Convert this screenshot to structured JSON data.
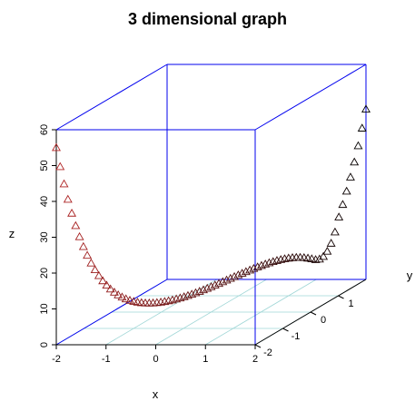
{
  "chart_data": {
    "type": "scatter",
    "title": "3 dimensional graph",
    "xlabel": "x",
    "ylabel": "y",
    "zlabel": "z",
    "xlim": [
      -2,
      2
    ],
    "ylim": [
      -2,
      2
    ],
    "zlim": [
      0,
      60
    ],
    "x_ticks": [
      "-2",
      "-1",
      "0",
      "1",
      "2"
    ],
    "y_ticks": [
      "-2",
      "-1",
      "0",
      "1"
    ],
    "z_ticks": [
      "0",
      "10",
      "20",
      "30",
      "40",
      "50",
      "60"
    ],
    "marker": "open-triangle",
    "color_near": "#b22222",
    "color_far": "#000000",
    "box_color": "#0000ee",
    "grid_color": "#9fd6d6",
    "grid": true,
    "series": [
      {
        "x": [
          -2.0,
          -1.95,
          -1.9,
          -1.85,
          -1.8,
          -1.75,
          -1.7,
          -1.65,
          -1.6,
          -1.55,
          -1.5,
          -1.45,
          -1.4,
          -1.35,
          -1.3,
          -1.25,
          -1.2,
          -1.15,
          -1.1,
          -1.05,
          -1.0,
          -0.95,
          -0.9,
          -0.85,
          -0.8,
          -0.75,
          -0.7,
          -0.65,
          -0.6,
          -0.55,
          -0.5,
          -0.45,
          -0.4,
          -0.35,
          -0.3,
          -0.25,
          -0.2,
          -0.15,
          -0.1,
          -0.05,
          0.0,
          0.05,
          0.1,
          0.15,
          0.2,
          0.25,
          0.3,
          0.35,
          0.4,
          0.45,
          0.5,
          0.55,
          0.6,
          0.65,
          0.7,
          0.75,
          0.8,
          0.85,
          0.9,
          0.95,
          1.0,
          1.05,
          1.1,
          1.15,
          1.2,
          1.25,
          1.3,
          1.35,
          1.4,
          1.45,
          1.5,
          1.55,
          1.6,
          1.65,
          1.7,
          1.75,
          1.8,
          1.85,
          1.9,
          1.95,
          2.0
        ],
        "y": [
          -2.0,
          -1.95,
          -1.9,
          -1.85,
          -1.8,
          -1.75,
          -1.7,
          -1.65,
          -1.6,
          -1.55,
          -1.5,
          -1.45,
          -1.4,
          -1.35,
          -1.3,
          -1.25,
          -1.2,
          -1.15,
          -1.1,
          -1.05,
          -1.0,
          -0.95,
          -0.9,
          -0.85,
          -0.8,
          -0.75,
          -0.7,
          -0.65,
          -0.6,
          -0.55,
          -0.5,
          -0.45,
          -0.4,
          -0.35,
          -0.3,
          -0.25,
          -0.2,
          -0.15,
          -0.1,
          -0.05,
          0.0,
          0.05,
          0.1,
          0.15,
          0.2,
          0.25,
          0.3,
          0.35,
          0.4,
          0.45,
          0.5,
          0.55,
          0.6,
          0.65,
          0.7,
          0.75,
          0.8,
          0.85,
          0.9,
          0.95,
          1.0,
          1.05,
          1.1,
          1.15,
          1.2,
          1.25,
          1.3,
          1.35,
          1.4,
          1.45,
          1.5,
          1.55,
          1.6,
          1.65,
          1.7,
          1.75,
          1.8,
          1.85,
          1.9,
          1.95,
          2.0
        ],
        "z": [
          55.0,
          49.45,
          44.42,
          39.88,
          35.77,
          32.07,
          28.75,
          25.77,
          23.11,
          20.73,
          18.62,
          16.75,
          15.09,
          13.63,
          12.35,
          11.23,
          10.25,
          9.41,
          8.68,
          8.05,
          7.52,
          7.07,
          6.7,
          6.39,
          6.15,
          5.95,
          5.81,
          5.71,
          5.65,
          5.63,
          5.64,
          5.68,
          5.75,
          5.85,
          5.97,
          6.11,
          6.27,
          6.45,
          6.64,
          6.84,
          7.06,
          7.29,
          7.52,
          7.76,
          8.01,
          8.25,
          8.5,
          8.74,
          8.98,
          9.21,
          9.43,
          9.64,
          9.84,
          10.02,
          10.18,
          10.31,
          10.42,
          10.5,
          10.53,
          10.53,
          10.48,
          10.38,
          10.22,
          10.0,
          9.71,
          9.34,
          8.91,
          8.46,
          8.4,
          8.9,
          10.11,
          12.12,
          15.03,
          18.98,
          22.26,
          25.74,
          29.44,
          33.42,
          37.73,
          42.42,
          47.5
        ]
      }
    ]
  }
}
